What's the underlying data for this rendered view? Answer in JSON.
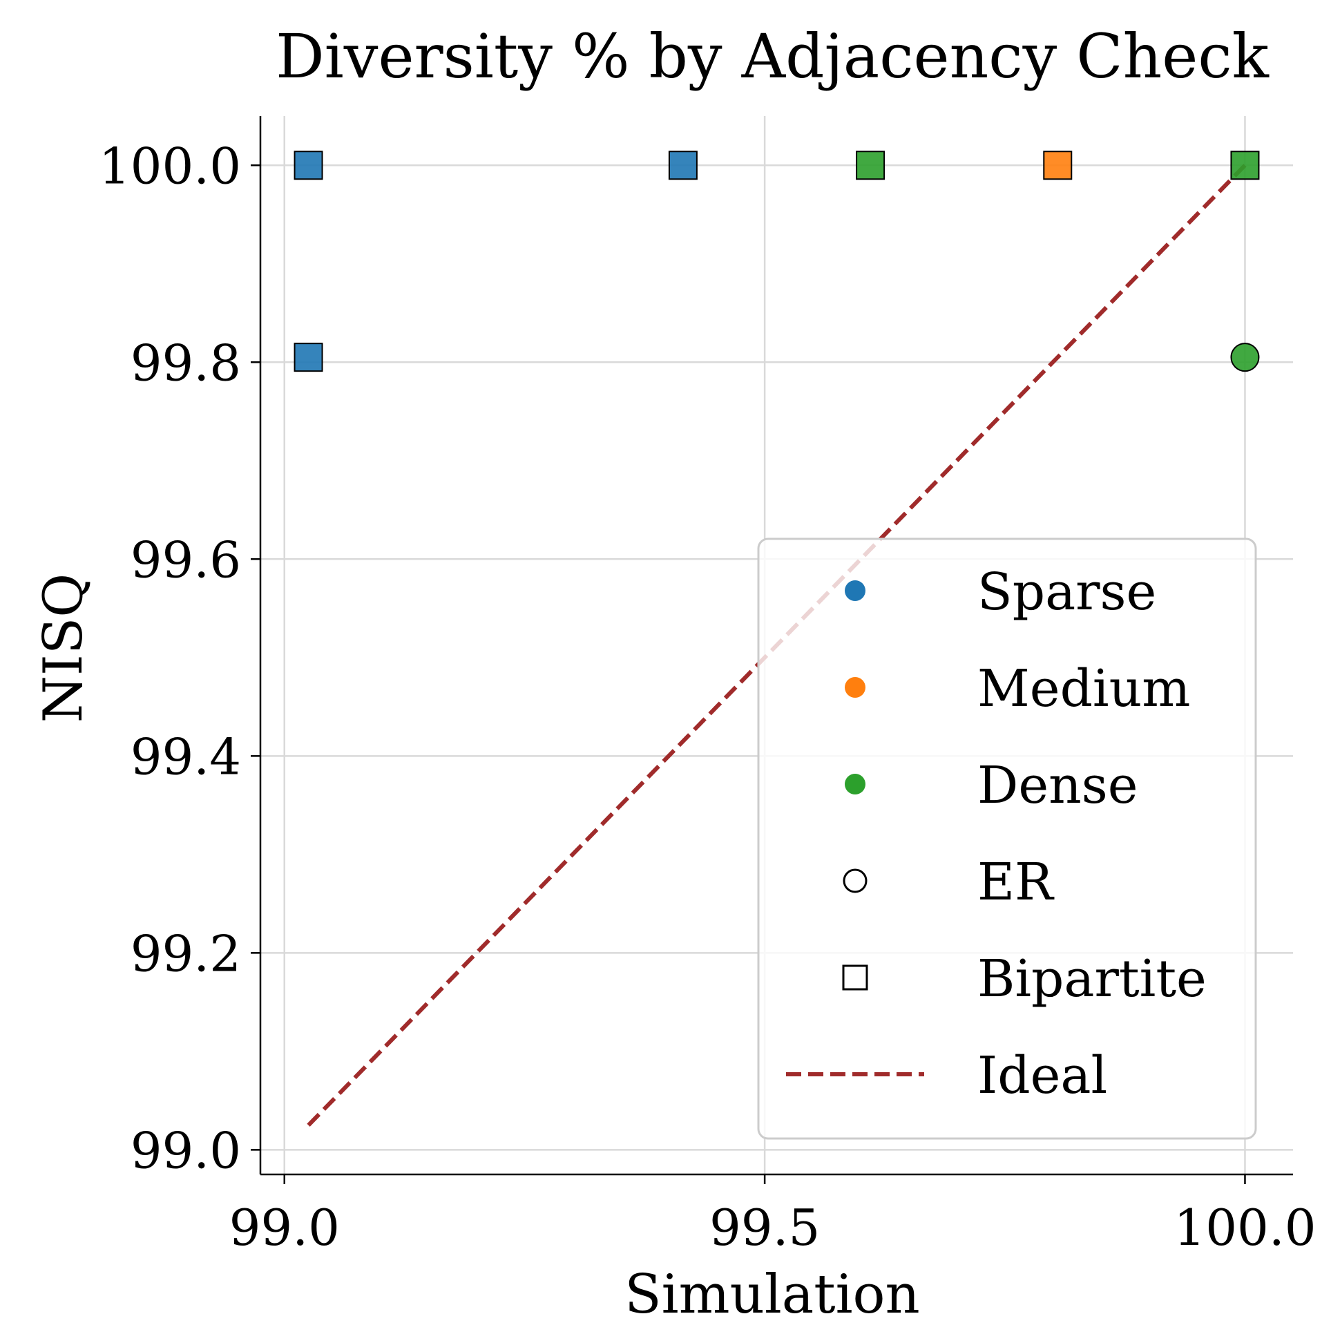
{
  "chart_data": {
    "type": "scatter",
    "title": "Diversity % by Adjacency Check",
    "xlabel": "Simulation",
    "ylabel": "NISQ",
    "xlim": [
      98.975,
      100.05
    ],
    "ylim": [
      98.975,
      100.05
    ],
    "xticks": [
      99.0,
      99.5,
      100.0
    ],
    "xtick_labels": [
      "99.0",
      "99.5",
      "100.0"
    ],
    "yticks": [
      99.0,
      99.2,
      99.4,
      99.6,
      99.8,
      100.0
    ],
    "ytick_labels": [
      "99.0",
      "99.2",
      "99.4",
      "99.6",
      "99.8",
      "100.0"
    ],
    "grid": true,
    "legend_position": "lower-right",
    "colors": {
      "Sparse": "#1f77b4",
      "Medium": "#ff7f0e",
      "Dense": "#2ca02c",
      "ideal": "#a02b2b"
    },
    "points": [
      {
        "x": 99.025,
        "y": 100.0,
        "group": "Sparse",
        "shape": "Bipartite"
      },
      {
        "x": 99.025,
        "y": 99.805,
        "group": "Sparse",
        "shape": "Bipartite"
      },
      {
        "x": 99.415,
        "y": 100.0,
        "group": "Sparse",
        "shape": "Bipartite"
      },
      {
        "x": 99.61,
        "y": 100.0,
        "group": "Dense",
        "shape": "Bipartite"
      },
      {
        "x": 99.805,
        "y": 100.0,
        "group": "Medium",
        "shape": "Bipartite"
      },
      {
        "x": 100.0,
        "y": 100.0,
        "group": "Dense",
        "shape": "Bipartite"
      },
      {
        "x": 100.0,
        "y": 99.805,
        "group": "Dense",
        "shape": "ER"
      }
    ],
    "ideal_line": {
      "x": [
        99.025,
        100.0
      ],
      "y": [
        99.025,
        100.0
      ]
    },
    "legend": [
      {
        "label": "Sparse",
        "kind": "color",
        "group": "Sparse"
      },
      {
        "label": "Medium",
        "kind": "color",
        "group": "Medium"
      },
      {
        "label": "Dense",
        "kind": "color",
        "group": "Dense"
      },
      {
        "label": "ER",
        "kind": "shape",
        "shape": "ER"
      },
      {
        "label": "Bipartite",
        "kind": "shape",
        "shape": "Bipartite"
      },
      {
        "label": "Ideal",
        "kind": "line"
      }
    ]
  }
}
